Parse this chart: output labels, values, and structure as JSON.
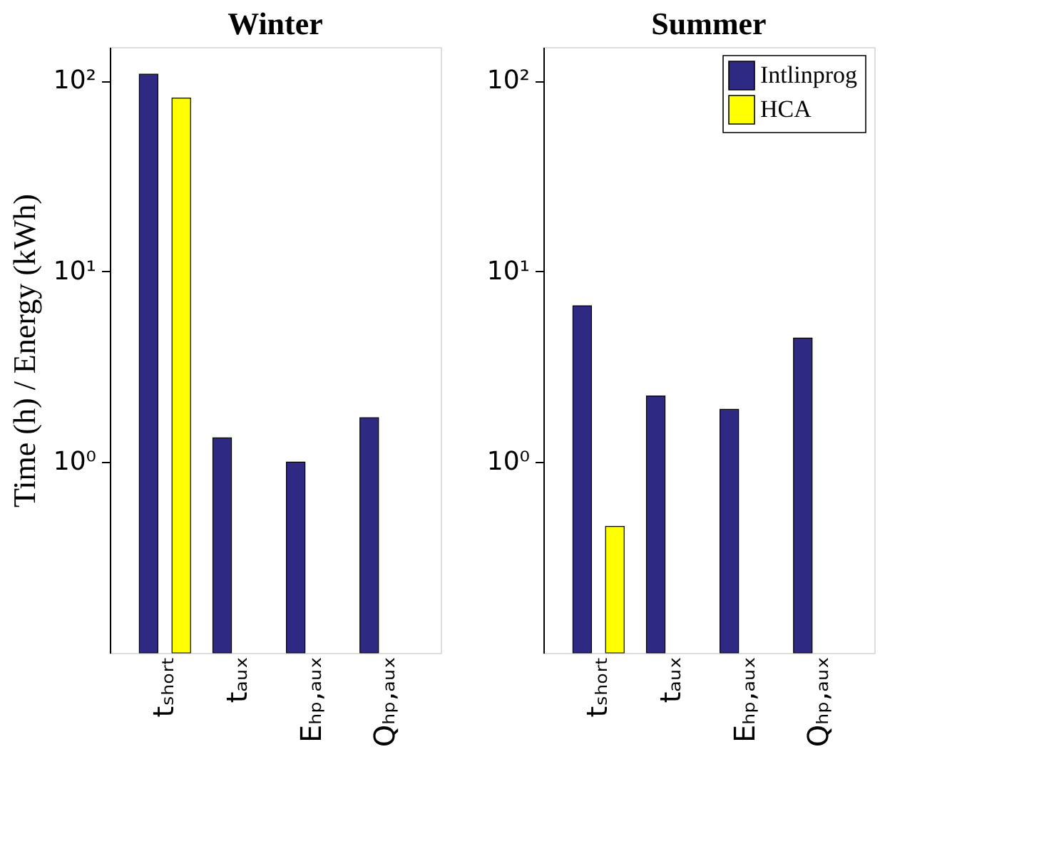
{
  "chart_data": [
    {
      "type": "bar",
      "title": "Winter",
      "ylabel": "Time (h) / Energy (kWh)",
      "categories": [
        "tₛₕₒᵣₜ",
        "tₐᵤₓ",
        "Eₕₚ,ₐᵤₓ",
        "Qₕₚ,ₐᵤₓ"
      ],
      "series": [
        {
          "name": "Intlinprog",
          "color": "#2e2a84",
          "values": [
            108,
            1.34,
            1.0,
            1.71
          ]
        },
        {
          "name": "HCA",
          "color": "#ffff00",
          "values": [
            81,
            null,
            null,
            null
          ]
        }
      ],
      "ylim": [
        0.1,
        150
      ],
      "yticks": [
        {
          "value": 1,
          "label": "10⁰"
        },
        {
          "value": 10,
          "label": "10¹"
        },
        {
          "value": 100,
          "label": "10²"
        }
      ],
      "log": true,
      "grid": false,
      "legend": false
    },
    {
      "type": "bar",
      "title": "Summer",
      "categories": [
        "tₛₕₒᵣₜ",
        "tₐᵤₓ",
        "Eₕₚ,ₐᵤₓ",
        "Qₕₚ,ₐᵤₓ"
      ],
      "series": [
        {
          "name": "Intlinprog",
          "color": "#2e2a84",
          "values": [
            6.6,
            2.22,
            1.89,
            4.47
          ]
        },
        {
          "name": "HCA",
          "color": "#ffff00",
          "values": [
            0.46,
            null,
            null,
            null
          ]
        }
      ],
      "ylim": [
        0.1,
        150
      ],
      "yticks": [
        {
          "value": 1,
          "label": "10⁰"
        },
        {
          "value": 10,
          "label": "10¹"
        },
        {
          "value": 100,
          "label": "10²"
        }
      ],
      "log": true,
      "grid": false,
      "legend": "top right"
    }
  ]
}
